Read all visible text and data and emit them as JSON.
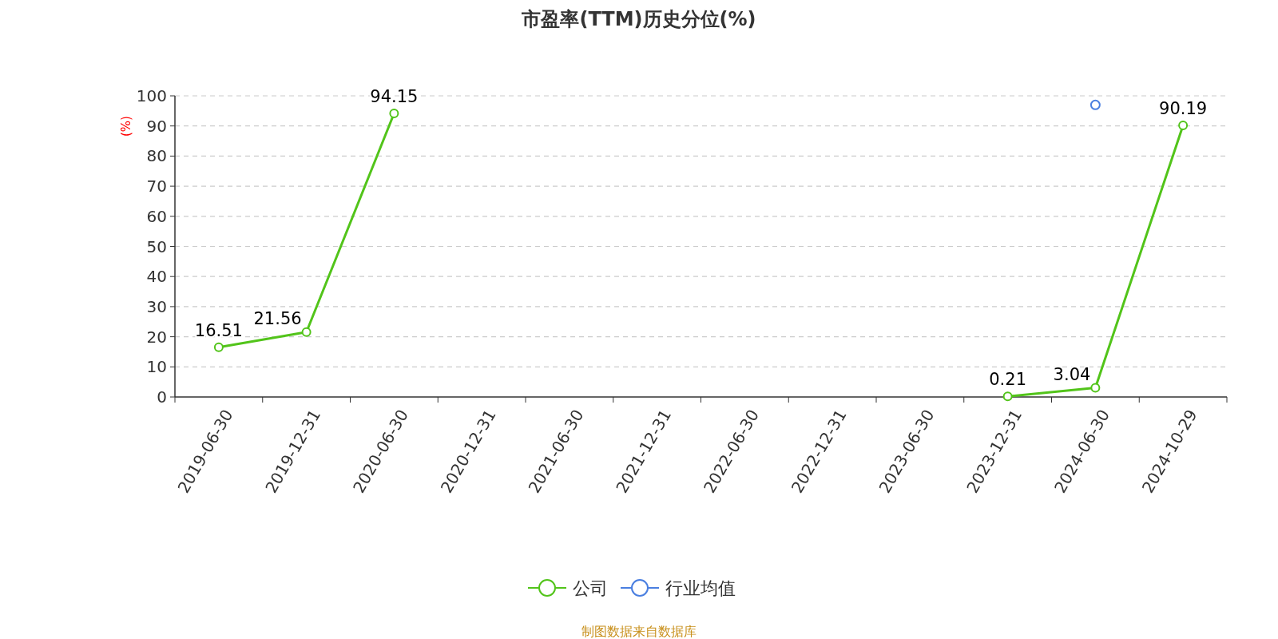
{
  "chart_data": {
    "type": "line",
    "title": "市盈率(TTM)历史分位(%)",
    "ylabel": "(%)",
    "categories": [
      "2019-06-30",
      "2019-12-31",
      "2020-06-30",
      "2020-12-31",
      "2021-06-30",
      "2021-12-31",
      "2022-06-30",
      "2022-12-31",
      "2023-06-30",
      "2023-12-31",
      "2024-06-30",
      "2024-10-29"
    ],
    "series": [
      {
        "name": "公司",
        "color": "#52c41a",
        "values": [
          16.51,
          21.56,
          94.15,
          null,
          null,
          null,
          null,
          null,
          null,
          0.21,
          3.04,
          90.19
        ],
        "value_labels": [
          "16.51",
          "21.56",
          "94.15",
          null,
          null,
          null,
          null,
          null,
          null,
          "0.21",
          "3.04",
          "90.19"
        ]
      },
      {
        "name": "行业均值",
        "type": "scatter",
        "color": "#4a7fe0",
        "values": [
          null,
          null,
          null,
          null,
          null,
          null,
          null,
          null,
          null,
          null,
          97,
          null
        ]
      }
    ],
    "ylim": [
      0,
      100
    ],
    "yticks": [
      0,
      10,
      20,
      30,
      40,
      50,
      60,
      70,
      80,
      90,
      100
    ],
    "grid": "y",
    "legend": "bottom",
    "marker": "circle",
    "annotations": [
      "制图数据来自数据库"
    ]
  }
}
